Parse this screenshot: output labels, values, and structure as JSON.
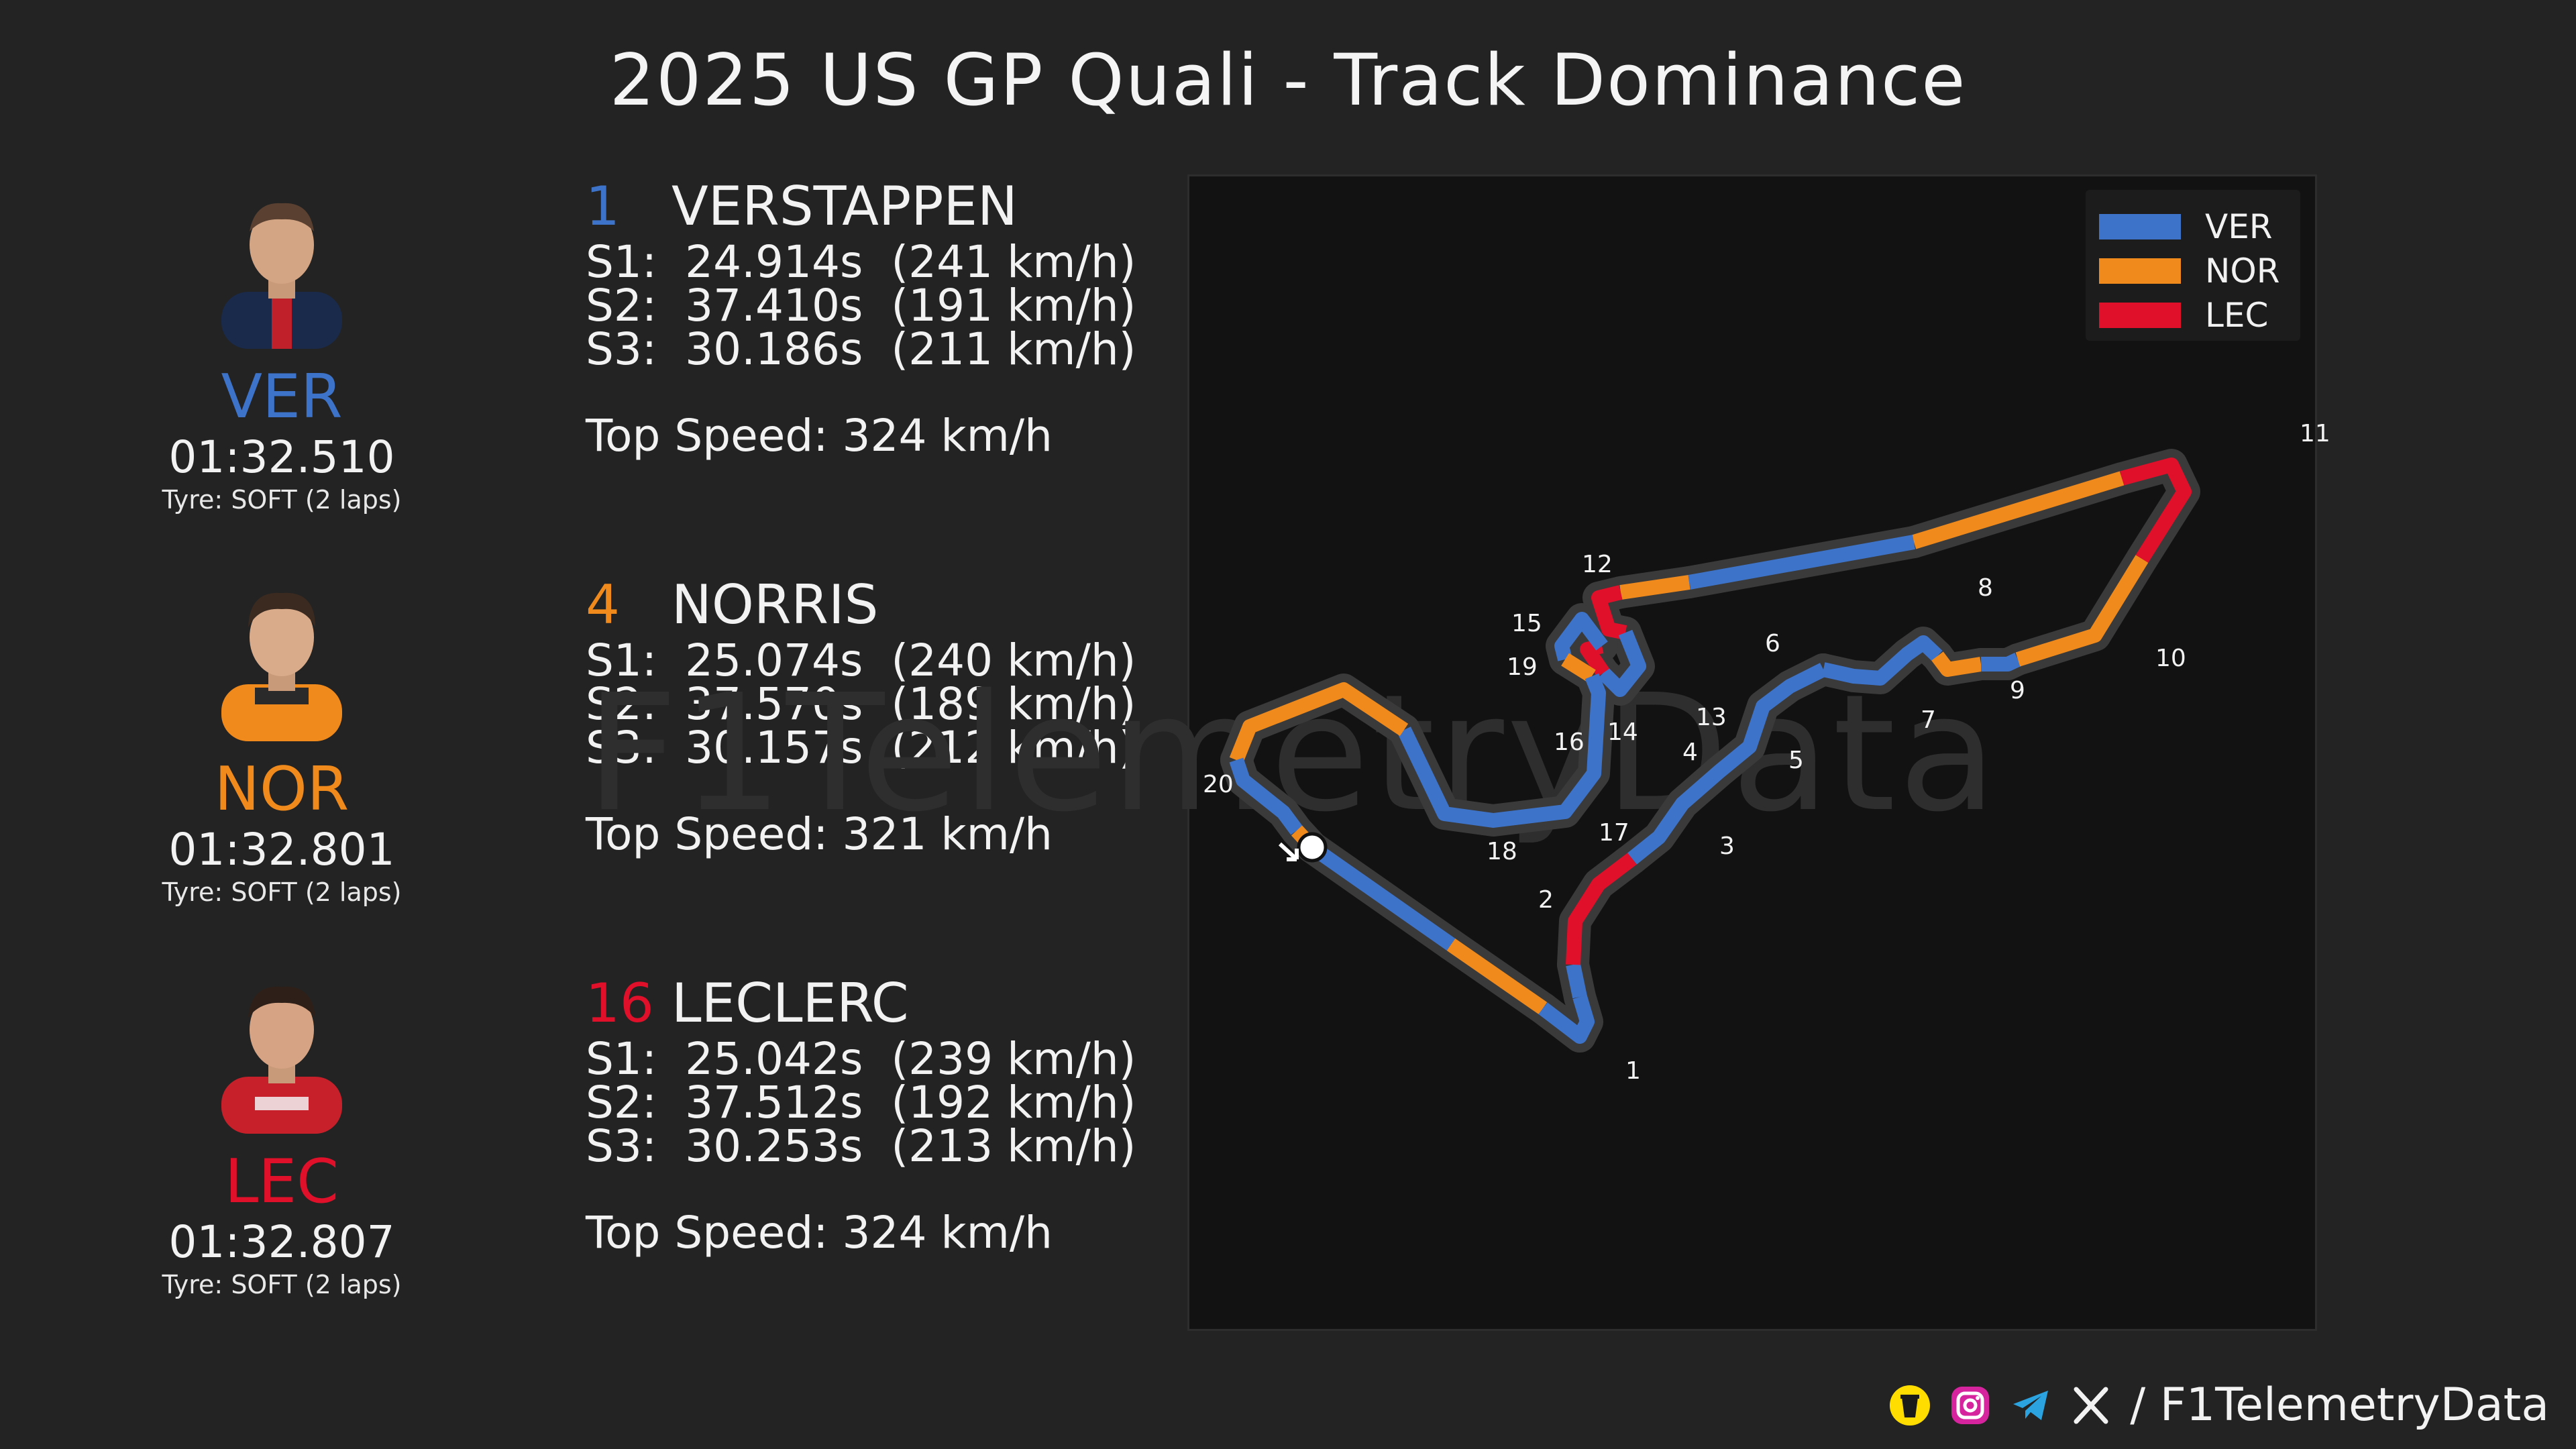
{
  "title": "2025 US GP Quali - Track Dominance",
  "drivers": [
    {
      "code": "VER",
      "color": "#3d73c9",
      "number": "1",
      "name": "VERSTAPPEN",
      "lap_time": "01:32.510",
      "tyre": "Tyre: SOFT (2 laps)",
      "s1": "S1:  24.914s  (241 km/h)",
      "s2": "S2:  37.410s  (191 km/h)",
      "s3": "S3:  30.186s  (211 km/h)",
      "top_speed": "Top Speed: 324 km/h",
      "suit_color": "#1a2a4a",
      "accent_color": "#c0202a"
    },
    {
      "code": "NOR",
      "color": "#f08a1c",
      "number": "4",
      "name": "NORRIS",
      "lap_time": "01:32.801",
      "tyre": "Tyre: SOFT (2 laps)",
      "s1": "S1:  25.074s  (240 km/h)",
      "s2": "S2:  37.570s  (189 km/h)",
      "s3": "S3:  30.157s  (212 km/h)",
      "top_speed": "Top Speed: 321 km/h",
      "suit_color": "#f08a1c",
      "accent_color": "#2a2a2a"
    },
    {
      "code": "LEC",
      "color": "#e0102a",
      "number": "16",
      "name": "LECLERC",
      "lap_time": "01:32.807",
      "tyre": "Tyre: SOFT (2 laps)",
      "s1": "S1:  25.042s  (239 km/h)",
      "s2": "S2:  37.512s  (192 km/h)",
      "s3": "S3:  30.253s  (213 km/h)",
      "top_speed": "Top Speed: 324 km/h",
      "suit_color": "#c8202a",
      "accent_color": "#f2f2f2"
    }
  ],
  "legend": [
    {
      "label": "VER",
      "color": "#3d73c9"
    },
    {
      "label": "NOR",
      "color": "#f08a1c"
    },
    {
      "label": "LEC",
      "color": "#e0102a"
    }
  ],
  "map": {
    "watermark": "F1TelemetryData",
    "turn_numbers": [
      "1",
      "2",
      "3",
      "4",
      "5",
      "6",
      "7",
      "8",
      "9",
      "10",
      "11",
      "12",
      "13",
      "14",
      "15",
      "16",
      "17",
      "18",
      "19",
      "20"
    ],
    "segment_owners": [
      "VER",
      "NOR",
      "VER",
      "VER",
      "LEC",
      "VER",
      "VER",
      "NOR",
      "VER",
      "NOR",
      "LEC",
      "NOR",
      "VER",
      "NOR",
      "LEC",
      "VER",
      "LEC",
      "VER",
      "NOR",
      "VER",
      "NOR",
      "VER",
      "NOR"
    ]
  },
  "footer": {
    "handle": "/ F1TelemetryData",
    "icons": [
      "buymeacoffee-icon",
      "instagram-icon",
      "telegram-icon",
      "x-icon"
    ]
  }
}
